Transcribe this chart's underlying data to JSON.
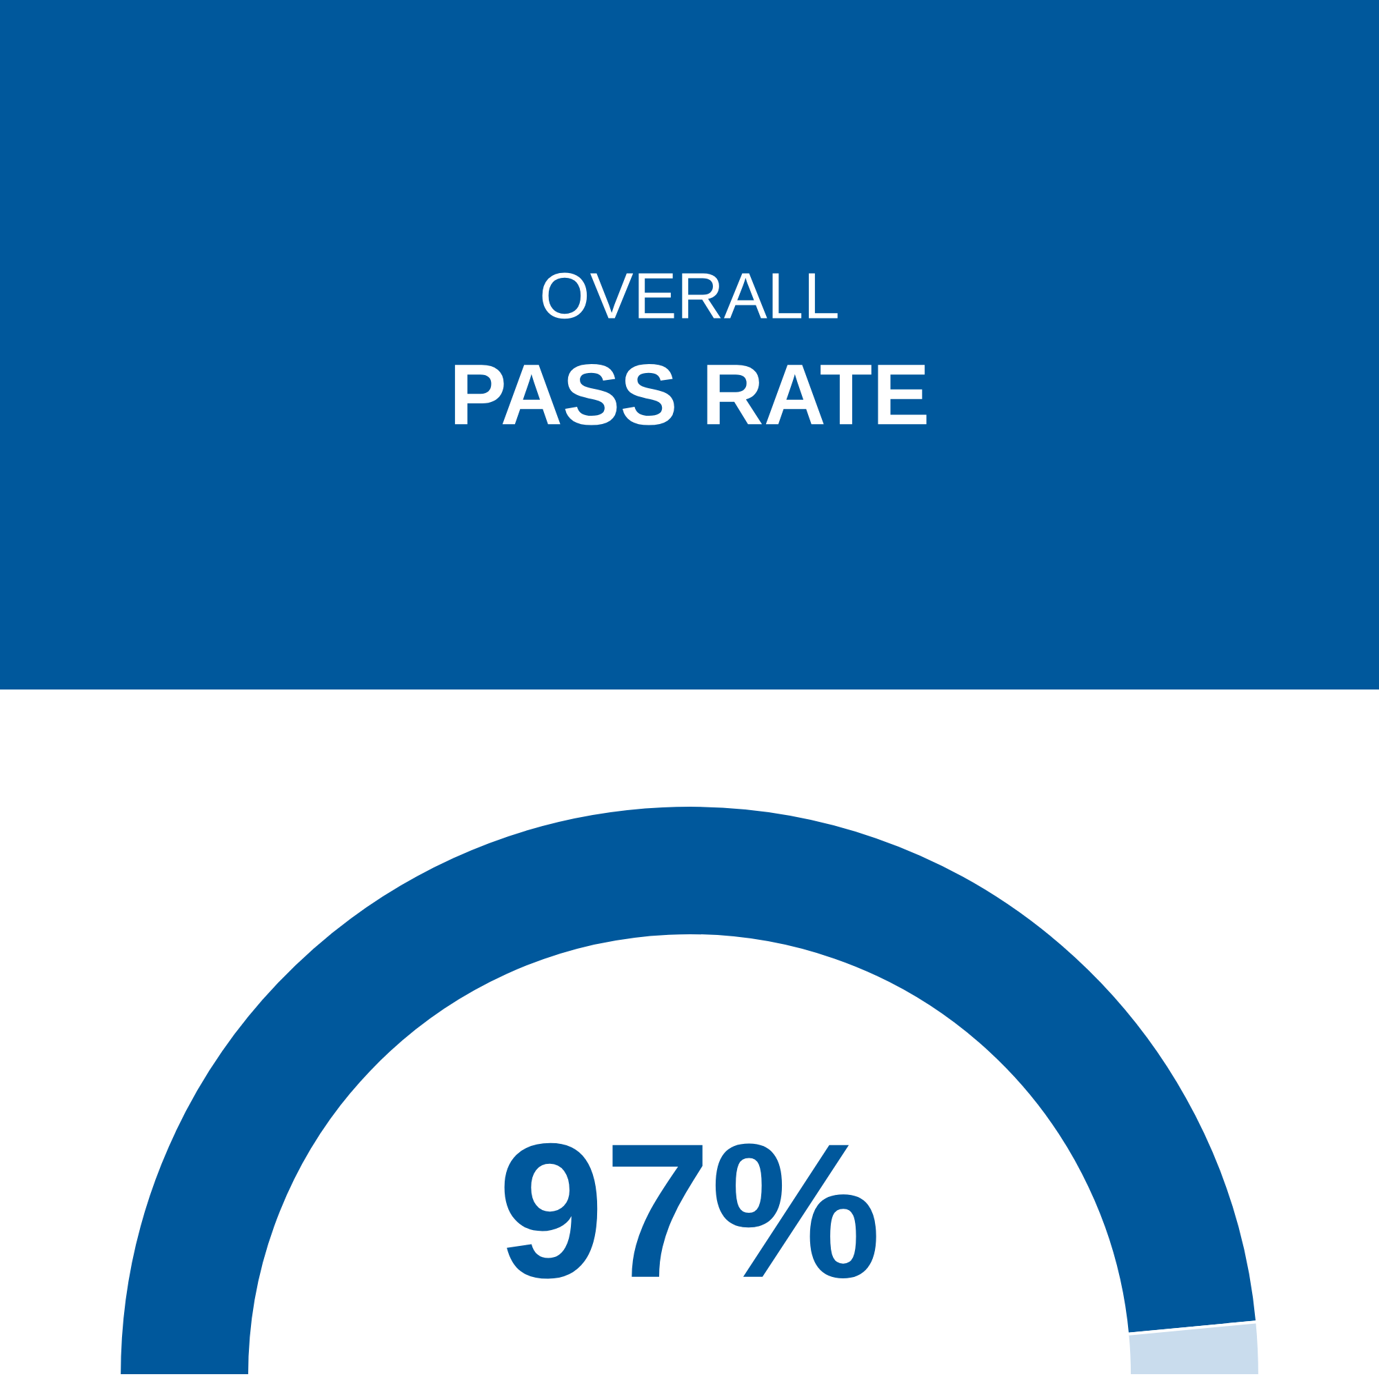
{
  "chart_data": {
    "type": "donut",
    "title": "OVERALL",
    "subtitle": "PASS RATE",
    "categories": [
      null,
      null
    ],
    "values": [
      97,
      3
    ],
    "colors": [
      "#00589c",
      "#c9dced"
    ],
    "value_labels": [
      "97%",
      null
    ]
  }
}
